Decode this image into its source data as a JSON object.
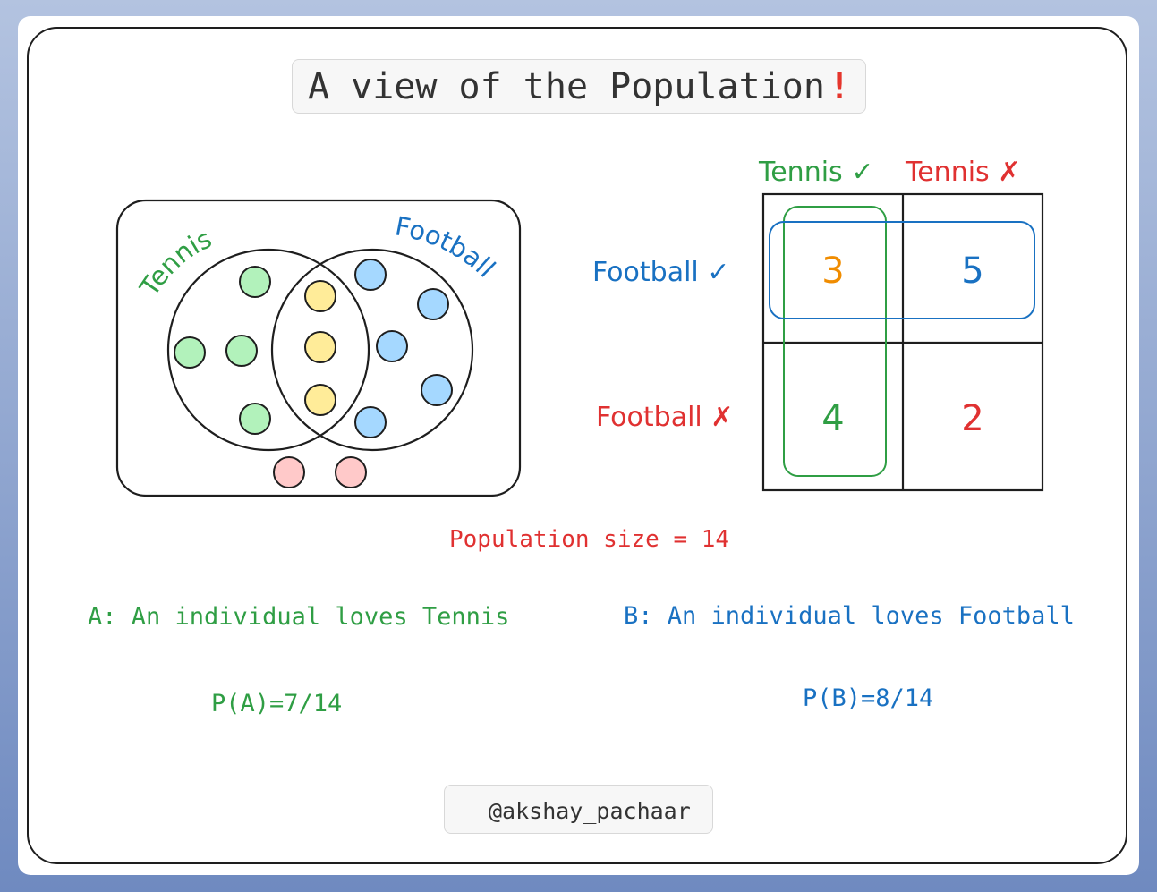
{
  "title": {
    "text": "A view of the Population",
    "exclaim": "!"
  },
  "venn": {
    "set_a_label": "Tennis",
    "set_b_label": "Football",
    "counts": {
      "tennis_only": 4,
      "both": 3,
      "football_only": 5,
      "neither": 2
    }
  },
  "table": {
    "col_headers": [
      "Tennis ✓",
      "Tennis ✗"
    ],
    "row_headers": [
      "Football ✓",
      "Football ✗"
    ],
    "cells": [
      [
        "3",
        "5"
      ],
      [
        "4",
        "2"
      ]
    ]
  },
  "population_text": "Population size = 14",
  "events": {
    "a_text": "A: An individual loves Tennis",
    "b_text": "B: An individual loves Football",
    "pa_text": "P(A)=7/14",
    "pb_text": "P(B)=8/14"
  },
  "credit": {
    "handle": "@akshay_pachaar",
    "icon": "twitter-bird-icon"
  },
  "colors": {
    "tennis_green": "#2f9e44",
    "football_blue": "#1971c2",
    "red": "#e03131",
    "orange": "#f08c00",
    "green_fill": "#b2f2bb",
    "yellow_fill": "#ffec99",
    "blue_fill": "#a5d8ff",
    "pink_fill": "#ffc9c9"
  }
}
